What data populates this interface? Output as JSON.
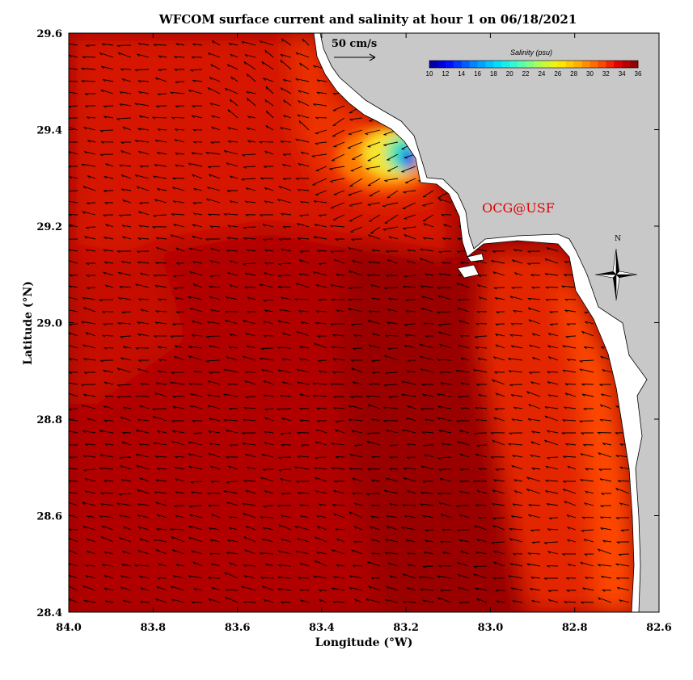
{
  "title": "WFCOM surface current and salinity at hour 1 on 06/18/2021",
  "watermark": "OCG@USF",
  "scale_arrow": {
    "label": "50 cm/s",
    "value_cm_s": 50
  },
  "compass": {
    "label": "N"
  },
  "colorbar": {
    "title": "Salinity (psu)",
    "ticks": [
      "10",
      "12",
      "14",
      "16",
      "18",
      "20",
      "22",
      "24",
      "26",
      "28",
      "30",
      "32",
      "34",
      "36"
    ],
    "range": [
      10,
      36
    ]
  },
  "chart_data": {
    "type": "heatmap",
    "title": "WFCOM surface current and salinity at hour 1 on 06/18/2021",
    "xlabel": "Longitude (°W)",
    "ylabel": "Latitude (°N)",
    "xlim": [
      84.0,
      82.6
    ],
    "ylim": [
      28.4,
      29.6
    ],
    "xticks": [
      "84.0",
      "83.8",
      "83.6",
      "83.4",
      "83.2",
      "83.0",
      "82.8",
      "82.6"
    ],
    "yticks": [
      "28.4",
      "28.6",
      "28.8",
      "29.0",
      "29.2",
      "29.4",
      "29.6"
    ],
    "variable": "Salinity (psu)",
    "colors": {
      "land": "#c8c8c8",
      "offshore": "#9a0000",
      "mid_shelf": "#d20f00",
      "nearshore": "#f03000",
      "coastal": "#ff5500",
      "annotation": "#e00000"
    },
    "plume": {
      "center_lon": 83.2,
      "center_lat": 29.34,
      "min_salinity": 10
    }
  }
}
